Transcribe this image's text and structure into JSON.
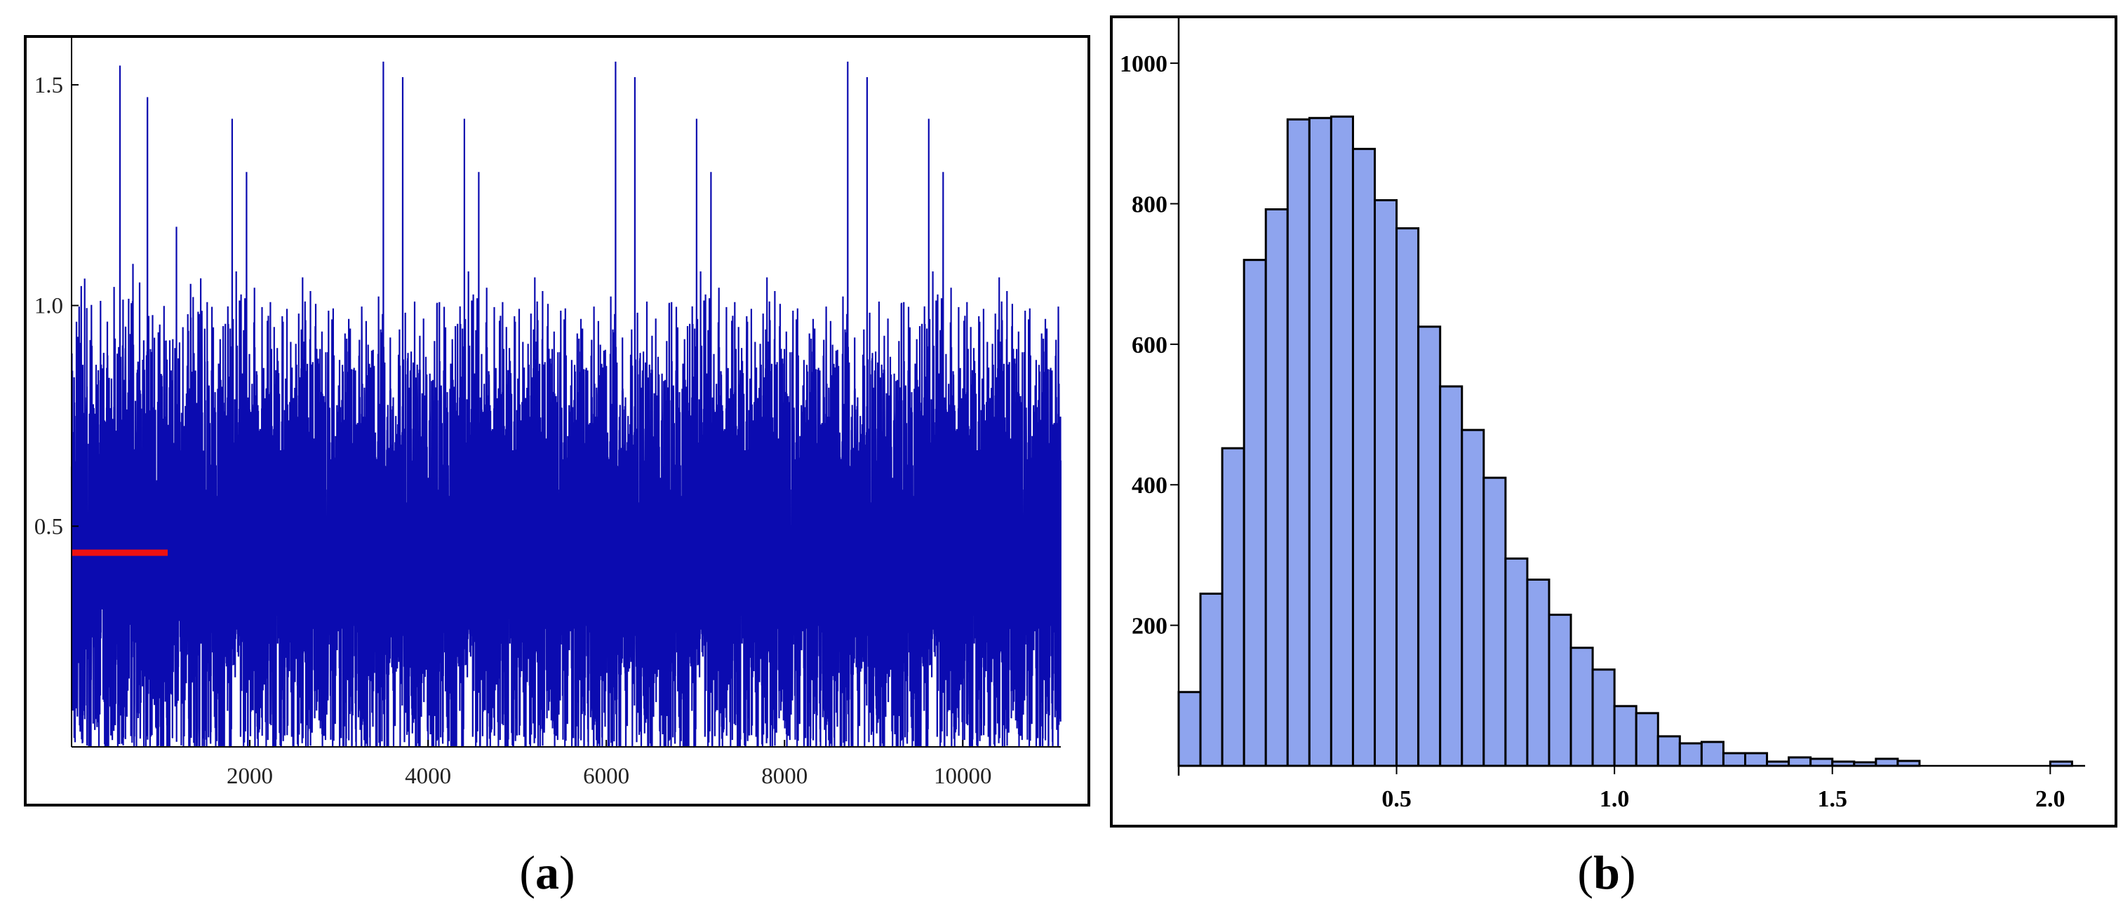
{
  "chart_data": [
    {
      "type": "line",
      "panel_label": "a",
      "series": [
        {
          "color": "#0b0bb0",
          "points": 11000,
          "y_min": 0.0,
          "y_max": 1.58,
          "y_typical_low": 0.1,
          "y_typical_high": 0.85,
          "y_center": 0.44
        }
      ],
      "reference_line": {
        "y": 0.44,
        "x_range": [
          0,
          1000
        ],
        "color": "#ee1111"
      },
      "x_ticks": [
        "2000",
        "4000",
        "6000",
        "8000",
        "10000"
      ],
      "y_ticks": [
        "0.5",
        "1.0",
        "1.5"
      ],
      "xlim": [
        0,
        11100
      ],
      "ylim": [
        0,
        1.6
      ],
      "title": "",
      "xlabel": "",
      "ylabel": "",
      "grid": false
    },
    {
      "type": "bar",
      "panel_label": "b",
      "bin_width": 0.05,
      "bin_start": 0.0,
      "values": [
        105,
        245,
        452,
        720,
        792,
        920,
        922,
        924,
        878,
        805,
        765,
        625,
        540,
        478,
        410,
        295,
        265,
        215,
        168,
        137,
        85,
        75,
        42,
        32,
        34,
        18,
        18,
        6,
        12,
        10,
        6,
        5,
        10,
        7,
        0,
        0,
        0,
        0,
        0,
        0,
        6
      ],
      "fill_color": "#8ea4ee",
      "edge_color": "#000000",
      "x_ticks": [
        "0.5",
        "1.0",
        "1.5",
        "2.0"
      ],
      "y_ticks": [
        "200",
        "400",
        "600",
        "800",
        "1000"
      ],
      "xlim": [
        0,
        2.08
      ],
      "ylim": [
        0,
        1000
      ],
      "title": "",
      "xlabel": "",
      "ylabel": "",
      "grid": false
    }
  ],
  "captions": {
    "a_open": "(",
    "a_letter": "a",
    "a_close": ")",
    "b_open": "(",
    "b_letter": "b",
    "b_close": ")"
  }
}
